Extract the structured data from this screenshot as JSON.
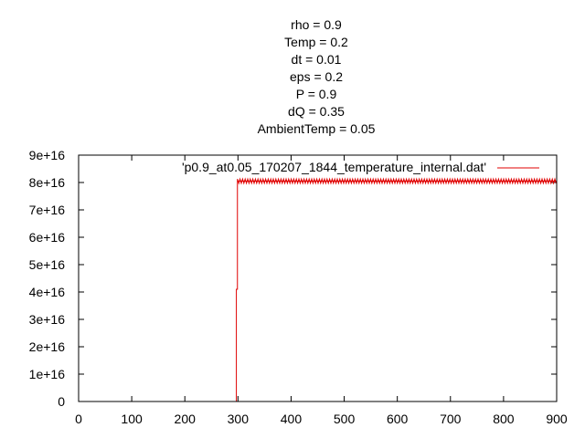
{
  "title_lines": [
    "rho = 0.9",
    "Temp = 0.2",
    "dt = 0.01",
    "eps = 0.2",
    "P = 0.9",
    "dQ = 0.35",
    "AmbientTemp = 0.05"
  ],
  "colors": {
    "series": "#e00000",
    "axis": "#000000",
    "background": "#ffffff"
  },
  "chart_data": {
    "type": "line",
    "xlim": [
      0,
      900
    ],
    "ylim": [
      0,
      9e+16
    ],
    "grid": false,
    "legend_position": "top-right",
    "x_ticks": [
      0,
      100,
      200,
      300,
      400,
      500,
      600,
      700,
      800,
      900
    ],
    "x_tick_labels": [
      "0",
      "100",
      "200",
      "300",
      "400",
      "500",
      "600",
      "700",
      "800",
      "900"
    ],
    "y_ticks": [
      0,
      1e+16,
      2e+16,
      3e+16,
      4e+16,
      5e+16,
      6e+16,
      7e+16,
      8e+16,
      9e+16
    ],
    "y_tick_labels": [
      "0",
      "1e+16",
      "2e+16",
      "3e+16",
      "4e+16",
      "5e+16",
      "6e+16",
      "7e+16",
      "8e+16",
      "9e+16"
    ],
    "series": [
      {
        "name": "'p0.9_at0.05_170207_1844_temperature_internal.dat'",
        "color": "#e00000",
        "points": [
          [
            297,
            0
          ],
          [
            297,
            4.1e+16
          ],
          [
            299,
            4.1e+16
          ],
          [
            299,
            8.05e+16
          ],
          [
            900,
            8.05e+16
          ]
        ],
        "oscillation": {
          "x_range": [
            299,
            900
          ],
          "center": 8.05e+16,
          "amplitude": 800000000000000.0
        }
      }
    ]
  }
}
